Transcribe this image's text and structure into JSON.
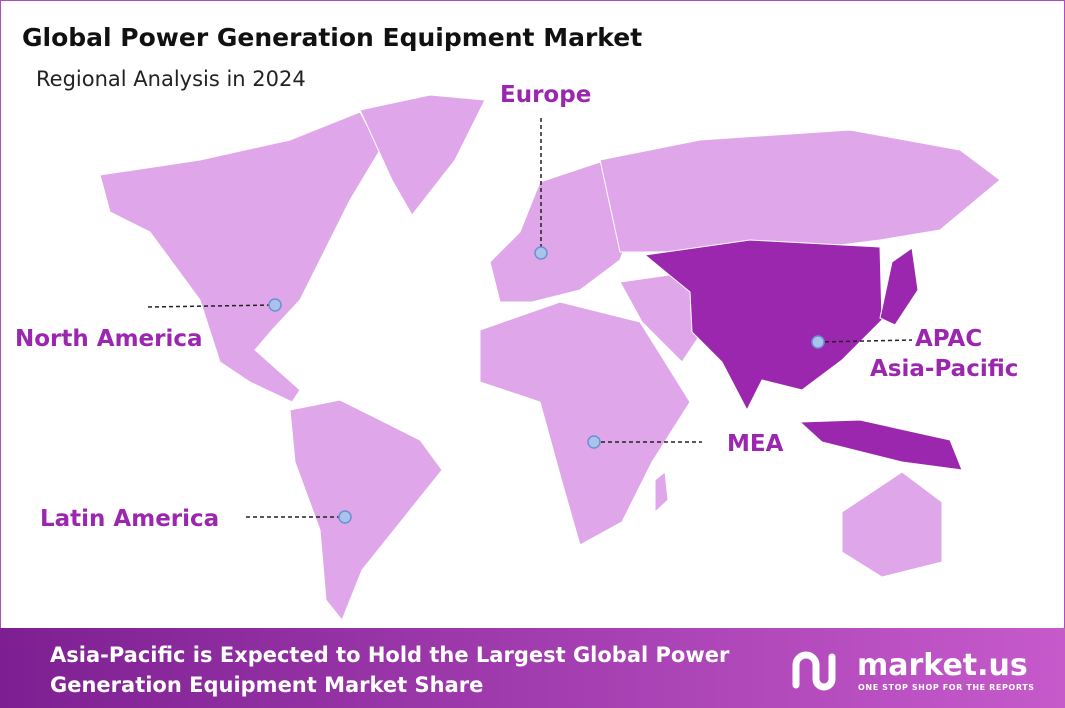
{
  "header": {
    "title": "Global Power Generation Equipment Market",
    "subtitle": "Regional Analysis in 2024"
  },
  "regions": [
    {
      "label": "Europe"
    },
    {
      "label": "North America"
    },
    {
      "label": "Latin America"
    },
    {
      "label": "MEA"
    },
    {
      "label": "APAC"
    },
    {
      "label": "Asia-Pacific"
    }
  ],
  "footer": {
    "lines": [
      "Asia-Pacific is Expected to Hold the Largest Global Power",
      "Generation Equipment Market Share"
    ],
    "logo": "market.us",
    "tagline": "ONE STOP SHOP FOR THE REPORTS"
  }
}
